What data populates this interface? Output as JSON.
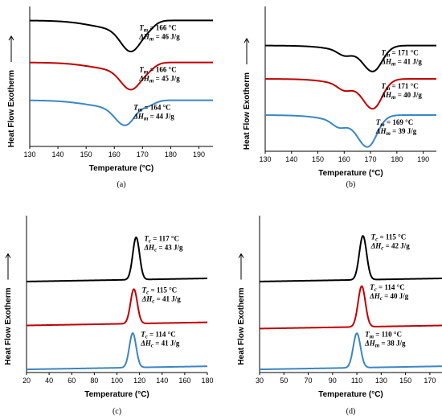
{
  "chart_data": [
    {
      "type": "line",
      "panel_label": "(a)",
      "xlabel": "Temperature (°C)",
      "ylabel": "Heat Flow Exotherm",
      "xlim": [
        130,
        195
      ],
      "x_ticks": [
        130,
        140,
        150,
        160,
        170,
        180,
        190
      ],
      "peak_type": "endotherm",
      "series": [
        {
          "color": "#000000",
          "baseline": 0.1,
          "peak_x": 166,
          "shoulder_x": 172,
          "depth": 0.16,
          "label_lines": [
            "Tm = 166 °C",
            "ΔHm = 46 J/g"
          ]
        },
        {
          "color": "#c00000",
          "baseline": 0.4,
          "peak_x": 166,
          "shoulder_x": 172,
          "depth": 0.14,
          "label_lines": [
            "Tm = 166 °C",
            "ΔHm = 45 J/g"
          ]
        },
        {
          "color": "#3b86c4",
          "baseline": 0.67,
          "peak_x": 164,
          "shoulder_x": 172,
          "depth": 0.13,
          "label_lines": [
            "Tm = 164 °C",
            "ΔHm = 44 J/g"
          ]
        }
      ]
    },
    {
      "type": "line",
      "panel_label": "(b)",
      "xlabel": "Temperature (°C)",
      "ylabel": "Heat Flow Exotherm",
      "xlim": [
        130,
        195
      ],
      "x_ticks": [
        130,
        140,
        150,
        160,
        170,
        180,
        190
      ],
      "peak_type": "endotherm",
      "series": [
        {
          "color": "#000000",
          "baseline": 0.27,
          "peak_x": 171,
          "shoulder_x": 160,
          "depth": 0.13,
          "label_lines": [
            "Tm = 171 °C",
            "ΔHm = 41 J/g"
          ]
        },
        {
          "color": "#c00000",
          "baseline": 0.5,
          "peak_x": 171,
          "shoulder_x": 160,
          "depth": 0.15,
          "label_lines": [
            "Tm = 171 °C",
            "ΔHm = 40 J/g"
          ]
        },
        {
          "color": "#3b86c4",
          "baseline": 0.75,
          "peak_x": 169,
          "shoulder_x": 158,
          "depth": 0.16,
          "label_lines": [
            "Tm = 169 °C",
            "ΔHm = 39 J/g"
          ]
        }
      ]
    },
    {
      "type": "line",
      "panel_label": "(c)",
      "xlabel": "Temperature (°C)",
      "ylabel": "Heat Flow Exotherm",
      "xlim": [
        20,
        180
      ],
      "x_ticks": [
        20,
        40,
        60,
        80,
        100,
        120,
        140,
        160,
        180
      ],
      "peak_type": "exotherm",
      "series": [
        {
          "color": "#000000",
          "baseline": 0.4,
          "peak_x": 117,
          "height": 0.27,
          "label_lines": [
            "Tc = 117 °C",
            "ΔHc = 43 J/g"
          ]
        },
        {
          "color": "#c00000",
          "baseline": 0.68,
          "peak_x": 115,
          "height": 0.22,
          "label_lines": [
            "Tc = 115 °C",
            "ΔHc = 41 J/g"
          ]
        },
        {
          "color": "#3b86c4",
          "baseline": 0.96,
          "peak_x": 114,
          "height": 0.22,
          "label_lines": [
            "Tc = 114 °C",
            "ΔHc = 41 J/g"
          ]
        }
      ]
    },
    {
      "type": "line",
      "panel_label": "(d)",
      "xlabel": "Temperature (°C)",
      "ylabel": "Heat Flow Exotherm",
      "xlim": [
        30,
        180
      ],
      "x_ticks": [
        30,
        50,
        70,
        90,
        110,
        130,
        150,
        170
      ],
      "peak_type": "exotherm",
      "series": [
        {
          "color": "#000000",
          "baseline": 0.4,
          "peak_x": 115,
          "height": 0.28,
          "label_lines": [
            "Tc = 115 °C",
            "ΔHc = 42 J/g"
          ]
        },
        {
          "color": "#c00000",
          "baseline": 0.7,
          "peak_x": 114,
          "height": 0.26,
          "label_lines": [
            "Tc = 114 °C",
            "ΔHc = 40 J/g"
          ]
        },
        {
          "color": "#3b86c4",
          "baseline": 0.96,
          "peak_x": 110,
          "height": 0.22,
          "label_lines": [
            "Tm = 110 °C",
            "ΔHm = 38 J/g"
          ]
        }
      ]
    }
  ]
}
